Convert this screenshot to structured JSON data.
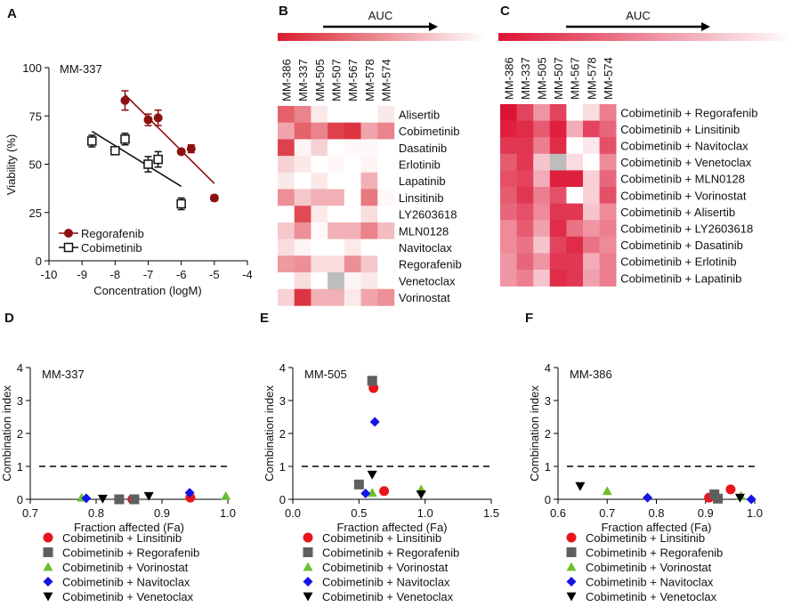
{
  "panels": {
    "A": "A",
    "B": "B",
    "C": "C",
    "D": "D",
    "E": "E",
    "F": "F"
  },
  "chart_data": [
    {
      "id": "A",
      "type": "scatter",
      "title": "MM-337",
      "xlabel": "Concentration (logM)",
      "ylabel": "Viability (%)",
      "xlim": [
        -10,
        -4
      ],
      "ylim": [
        0,
        100
      ],
      "xticks": [
        -10,
        -9,
        -8,
        -7,
        -6,
        -5,
        -4
      ],
      "yticks": [
        0,
        25,
        50,
        75,
        100
      ],
      "legend": "bottom-left",
      "series": [
        {
          "name": "Regorafenib",
          "color": "#8b1010",
          "marker": "filled-circle",
          "x": [
            -7.7,
            -7,
            -6.7,
            -6,
            -5.7,
            -5
          ],
          "y": [
            83,
            73,
            74,
            56.5,
            58,
            32.5
          ],
          "err": [
            5,
            3,
            4,
            1,
            2,
            1.5
          ],
          "fit": [
            [
              -7.7,
              86
            ],
            [
              -5,
              40
            ]
          ]
        },
        {
          "name": "Cobimetinib",
          "color": "#111111",
          "marker": "open-square",
          "x": [
            -8.7,
            -8,
            -7.7,
            -7,
            -6.7,
            -6
          ],
          "y": [
            62,
            57,
            63,
            50,
            52.5,
            29.5
          ],
          "err": [
            3,
            1,
            3,
            4,
            4,
            3
          ],
          "fit": [
            [
              -8.7,
              67
            ],
            [
              -6,
              38.5
            ]
          ]
        }
      ]
    },
    {
      "id": "B",
      "type": "heatmap",
      "annotation": "AUC",
      "columns": [
        "MM-386",
        "MM-337",
        "MM-505",
        "MM-507",
        "MM-567",
        "MM-578",
        "MM-574"
      ],
      "rows": [
        "Alisertib",
        "Cobimetinib",
        "Dasatinib",
        "Erlotinib",
        "Lapatinib",
        "Linsitinib",
        "LY2603618",
        "MLN0128",
        "Navitoclax",
        "Regorafenib",
        "Venetoclax",
        "Vorinostat"
      ],
      "values": [
        [
          0.7,
          0.55,
          0.1,
          0,
          0,
          0,
          0.1
        ],
        [
          0.4,
          0.7,
          0.55,
          0.85,
          0.9,
          0.4,
          0.55
        ],
        [
          0.85,
          0.05,
          0.2,
          0,
          0.03,
          0.03,
          0
        ],
        [
          0.2,
          0.1,
          0,
          0.03,
          0,
          0.05,
          0
        ],
        [
          0.1,
          0,
          0.1,
          0,
          0,
          0.35,
          0
        ],
        [
          0.5,
          0.25,
          0.35,
          0.35,
          0,
          0.6,
          0.03
        ],
        [
          0,
          0.8,
          0.1,
          0,
          0,
          0.15,
          0
        ],
        [
          0.25,
          0.5,
          0.03,
          0.35,
          0.35,
          0.55,
          0.3
        ],
        [
          0.15,
          0.05,
          0,
          0,
          0.1,
          0,
          0
        ],
        [
          0.45,
          0.5,
          0.15,
          0.15,
          0.5,
          0.25,
          0
        ],
        [
          0,
          0.15,
          0,
          null,
          0.05,
          0.1,
          0
        ],
        [
          0.2,
          0.9,
          0.35,
          0.35,
          0.1,
          0.4,
          0.5
        ]
      ],
      "color_high": "#d81e2c",
      "color_low": "#ffffff",
      "color_missing": "#bdbdbd"
    },
    {
      "id": "C",
      "type": "heatmap",
      "annotation": "AUC",
      "columns": [
        "MM-386",
        "MM-337",
        "MM-505",
        "MM-507",
        "MM-567",
        "MM-578",
        "MM-574"
      ],
      "rows": [
        "Cobimetinib + Regorafenib",
        "Cobimetinib + Linsitinib",
        "Cobimetinib + Navitoclax",
        "Cobimetinib + Venetoclax",
        "Cobimetinib + MLN0128",
        "Cobimetinib + Vorinostat",
        "Cobimetinib + Alisertib",
        "Cobimetinib + LY2603618",
        "Cobimetinib + Dasatinib",
        "Cobimetinib + Erlotinib",
        "Cobimetinib + Lapatinib"
      ],
      "values": [
        [
          1,
          0.8,
          0.45,
          0.8,
          0,
          0.15,
          0.55
        ],
        [
          0.95,
          0.9,
          0.7,
          0.95,
          0.35,
          0.8,
          0.65
        ],
        [
          0.85,
          0.85,
          0.55,
          0.9,
          0,
          0.1,
          0.75
        ],
        [
          0.7,
          0.85,
          0.25,
          null,
          0.15,
          0,
          0.5
        ],
        [
          0.75,
          0.8,
          0.35,
          0.95,
          0.95,
          0.2,
          0.65
        ],
        [
          0.7,
          0.85,
          0.55,
          0.75,
          0,
          0.2,
          0.75
        ],
        [
          0.65,
          0.75,
          0.5,
          0.85,
          0.85,
          0.25,
          0.5
        ],
        [
          0.5,
          0.7,
          0.4,
          0.9,
          0.6,
          0.45,
          0.55
        ],
        [
          0.5,
          0.6,
          0.25,
          0.8,
          0.9,
          0.6,
          0.5
        ],
        [
          0.45,
          0.65,
          0.45,
          0.85,
          0.85,
          0.35,
          0.55
        ],
        [
          0.45,
          0.55,
          0.25,
          0.9,
          0.85,
          0.4,
          0.55
        ]
      ],
      "color_high": "#dc1434",
      "color_low": "#ffffff",
      "color_missing": "#bdbdbd"
    },
    {
      "id": "D",
      "type": "scatter",
      "title": "MM-337",
      "xlabel": "Fraction affected (Fa)",
      "ylabel": "Combination index",
      "xlim": [
        0.7,
        1.0
      ],
      "ylim": [
        0,
        4
      ],
      "xticks": [
        "0.7",
        "0.8",
        "0.9",
        "1.0"
      ],
      "yticks": [
        0,
        1,
        2,
        3,
        4
      ],
      "reference_line": 1,
      "legend": "bottom",
      "series": [
        {
          "name": "Cobimetinib + Linsitinib",
          "x": [
            0.855,
            0.943
          ],
          "y": [
            0,
            0.05
          ]
        },
        {
          "name": "Cobimetinib + Regorafenib",
          "x": [
            0.835,
            0.858
          ],
          "y": [
            0,
            0
          ]
        },
        {
          "name": "Cobimetinib + Vorinostat",
          "x": [
            0.778,
            0.997
          ],
          "y": [
            0.05,
            0.1
          ]
        },
        {
          "name": "Cobimetinib + Navitoclax",
          "x": [
            0.785,
            0.942
          ],
          "y": [
            0.03,
            0.2
          ]
        },
        {
          "name": "Cobimetinib + Venetoclax",
          "x": [
            0.81,
            0.88
          ],
          "y": [
            0.02,
            0.1
          ]
        }
      ]
    },
    {
      "id": "E",
      "type": "scatter",
      "title": "MM-505",
      "xlabel": "Fraction affected (Fa)",
      "ylabel": "Combination index",
      "xlim": [
        0,
        1.5
      ],
      "ylim": [
        0,
        4
      ],
      "xticks": [
        "0.0",
        "0.5",
        "1.0",
        "1.5"
      ],
      "yticks": [
        0,
        1,
        2,
        3,
        4
      ],
      "reference_line": 1,
      "legend": "bottom",
      "series": [
        {
          "name": "Cobimetinib + Linsitinib",
          "x": [
            0.61,
            0.69
          ],
          "y": [
            3.38,
            0.25
          ]
        },
        {
          "name": "Cobimetinib + Regorafenib",
          "x": [
            0.6,
            0.5
          ],
          "y": [
            3.6,
            0.45
          ]
        },
        {
          "name": "Cobimetinib + Vorinostat",
          "x": [
            0.6,
            0.97
          ],
          "y": [
            0.2,
            0.3
          ]
        },
        {
          "name": "Cobimetinib + Navitoclax",
          "x": [
            0.62,
            0.55
          ],
          "y": [
            2.35,
            0.18
          ]
        },
        {
          "name": "Cobimetinib + Venetoclax",
          "x": [
            0.6,
            0.97
          ],
          "y": [
            0.75,
            0.15
          ]
        }
      ]
    },
    {
      "id": "F",
      "type": "scatter",
      "title": "MM-386",
      "xlabel": "Fraction affected (Fa)",
      "ylabel": "Combination index",
      "xlim": [
        0.6,
        1.0
      ],
      "ylim": [
        0,
        4
      ],
      "xticks": [
        "0.6",
        "0.7",
        "0.8",
        "0.9",
        "1.0"
      ],
      "yticks": [
        0,
        1,
        2,
        3,
        4
      ],
      "reference_line": 1,
      "legend": "bottom",
      "series": [
        {
          "name": "Cobimetinib + Linsitinib",
          "x": [
            0.907,
            0.951
          ],
          "y": [
            0.05,
            0.3
          ]
        },
        {
          "name": "Cobimetinib + Regorafenib",
          "x": [
            0.918,
            0.925
          ],
          "y": [
            0.15,
            0.02
          ]
        },
        {
          "name": "Cobimetinib + Vorinostat",
          "x": [
            0.7,
            0.972
          ],
          "y": [
            0.25,
            0.1
          ]
        },
        {
          "name": "Cobimetinib + Navitoclax",
          "x": [
            0.782,
            0.993
          ],
          "y": [
            0.05,
            0
          ]
        },
        {
          "name": "Cobimetinib + Venetoclax",
          "x": [
            0.645,
            0.97
          ],
          "y": [
            0.4,
            0.05
          ]
        }
      ]
    }
  ],
  "ci_markers": [
    {
      "shape": "circle",
      "color": "#e8161b"
    },
    {
      "shape": "square",
      "color": "#5f5f5f"
    },
    {
      "shape": "triangle-up",
      "color": "#6cbf2c"
    },
    {
      "shape": "diamond",
      "color": "#1414e6"
    },
    {
      "shape": "triangle-down",
      "color": "#000000"
    }
  ]
}
